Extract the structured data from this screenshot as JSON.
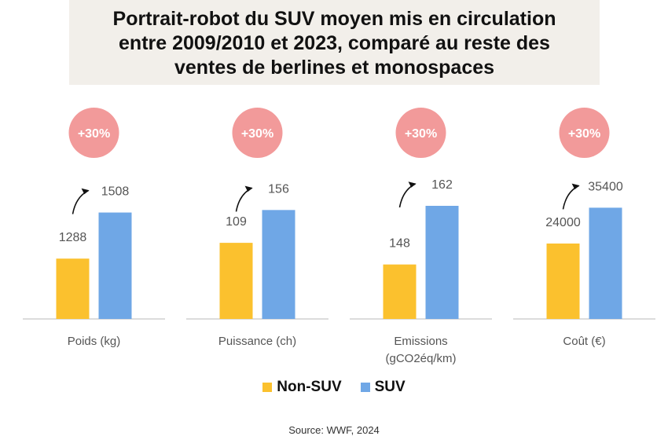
{
  "title": {
    "line1": "Portrait-robot du SUV moyen mis en circulation",
    "line2": "entre 2009/2010 et 2023, comparé au reste des",
    "line3": "ventes de berlines et monospaces"
  },
  "colors": {
    "non_suv": "#FBC12E",
    "suv": "#6FA7E6",
    "badge": "#F29A9A"
  },
  "chart_data": {
    "type": "bar",
    "series": [
      {
        "name": "Non-SUV"
      },
      {
        "name": "SUV"
      }
    ],
    "panels": [
      {
        "category": "Poids (kg)",
        "category_line2": "",
        "non_suv": 1288,
        "suv": 1508,
        "badge": "+30%",
        "ylim": [
          1000,
          1600
        ]
      },
      {
        "category": "Puissance (ch)",
        "category_line2": "",
        "non_suv": 109,
        "suv": 156,
        "badge": "+30%",
        "ylim": [
          0,
          180
        ]
      },
      {
        "category": "Emissions",
        "category_line2": "(gCO2éq/km)",
        "non_suv": 148,
        "suv": 162,
        "badge": "+30%",
        "ylim": [
          135,
          165
        ]
      },
      {
        "category": "Coût (€)",
        "category_line2": "",
        "non_suv": 24000,
        "suv": 35400,
        "badge": "+30%",
        "ylim": [
          0,
          40000
        ]
      }
    ]
  },
  "legend": {
    "non_suv": "Non-SUV",
    "suv": "SUV"
  },
  "source": "Source: WWF, 2024"
}
